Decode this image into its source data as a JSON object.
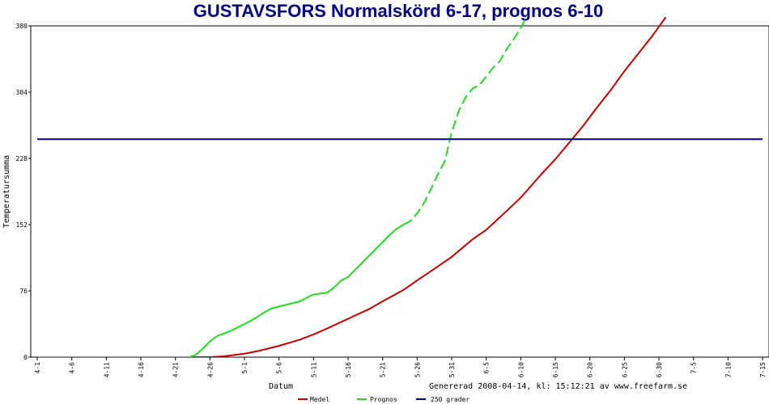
{
  "chart_data": {
    "type": "line",
    "title": "GUSTAVSFORS Normalskörd 6-17, prognos 6-10",
    "xlabel": "Datum",
    "ylabel": "Temperatursumma",
    "ylim": [
      0,
      380
    ],
    "xlim_day": [
      0,
      105
    ],
    "y_ticks": [
      "0",
      "76",
      "152",
      "228",
      "304",
      "380"
    ],
    "x_ticks": [
      "4-1",
      "4-6",
      "4-11",
      "4-16",
      "4-21",
      "4-26",
      "5-1",
      "5-6",
      "5-11",
      "5-16",
      "5-21",
      "5-26",
      "5-31",
      "6-5",
      "6-10",
      "6-15",
      "6-20",
      "6-25",
      "6-30",
      "7-5",
      "7-10",
      "7-15"
    ],
    "footer_note": "Genererad 2008-04-14, kl: 15:12:21 av www.freefarm.se",
    "grid": false,
    "legend_position": "bottom",
    "colors": {
      "title": "#000080",
      "medel": "#cc0000",
      "prognos": "#22dd22",
      "threshold": "#000099"
    },
    "series": [
      {
        "name": "Medel",
        "style": "solid",
        "points": [
          [
            0,
            0
          ],
          [
            25,
            0
          ],
          [
            27,
            1
          ],
          [
            30,
            4
          ],
          [
            32,
            7
          ],
          [
            35,
            13
          ],
          [
            38,
            20
          ],
          [
            40,
            26
          ],
          [
            42,
            33
          ],
          [
            45,
            44
          ],
          [
            48,
            55
          ],
          [
            50,
            64
          ],
          [
            53,
            77
          ],
          [
            55,
            88
          ],
          [
            58,
            104
          ],
          [
            60,
            115
          ],
          [
            63,
            135
          ],
          [
            65,
            146
          ],
          [
            68,
            168
          ],
          [
            70,
            183
          ],
          [
            73,
            210
          ],
          [
            75,
            227
          ],
          [
            77,
            246
          ],
          [
            79,
            265
          ],
          [
            81,
            286
          ],
          [
            83,
            306
          ],
          [
            85,
            328
          ],
          [
            87,
            348
          ],
          [
            89,
            368
          ],
          [
            91,
            390
          ]
        ]
      },
      {
        "name": "Prognos",
        "segments": [
          {
            "style": "solid",
            "points": [
              [
                0,
                0
              ],
              [
                22,
                0
              ],
              [
                23,
                3
              ],
              [
                24,
                10
              ],
              [
                25,
                18
              ],
              [
                26,
                24
              ],
              [
                27,
                27
              ],
              [
                28,
                30
              ],
              [
                29,
                34
              ],
              [
                30,
                38
              ],
              [
                31,
                42
              ],
              [
                32,
                47
              ],
              [
                33,
                52
              ],
              [
                34,
                56
              ],
              [
                35,
                58
              ],
              [
                36,
                60
              ],
              [
                37,
                62
              ],
              [
                38,
                64
              ],
              [
                39,
                68
              ],
              [
                40,
                72
              ],
              [
                41,
                73
              ],
              [
                42,
                74
              ],
              [
                43,
                80
              ],
              [
                44,
                88
              ],
              [
                45,
                92
              ],
              [
                46,
                100
              ],
              [
                47,
                108
              ],
              [
                48,
                116
              ],
              [
                49,
                124
              ],
              [
                50,
                132
              ],
              [
                51,
                140
              ],
              [
                52,
                147
              ],
              [
                53,
                152
              ]
            ]
          },
          {
            "style": "dashed",
            "points": [
              [
                53,
                152
              ],
              [
                54,
                156
              ],
              [
                55,
                165
              ],
              [
                56,
                177
              ],
              [
                57,
                193
              ],
              [
                58,
                210
              ],
              [
                59,
                225
              ],
              [
                60,
                258
              ],
              [
                61,
                282
              ],
              [
                62,
                298
              ],
              [
                63,
                308
              ],
              [
                64,
                312
              ],
              [
                65,
                322
              ],
              [
                66,
                332
              ],
              [
                67,
                340
              ],
              [
                68,
                354
              ],
              [
                69,
                365
              ],
              [
                70,
                378
              ],
              [
                71,
                392
              ]
            ]
          }
        ]
      },
      {
        "name": "250 grader",
        "style": "solid",
        "points": [
          [
            0,
            250
          ],
          [
            105,
            250
          ]
        ]
      }
    ]
  }
}
